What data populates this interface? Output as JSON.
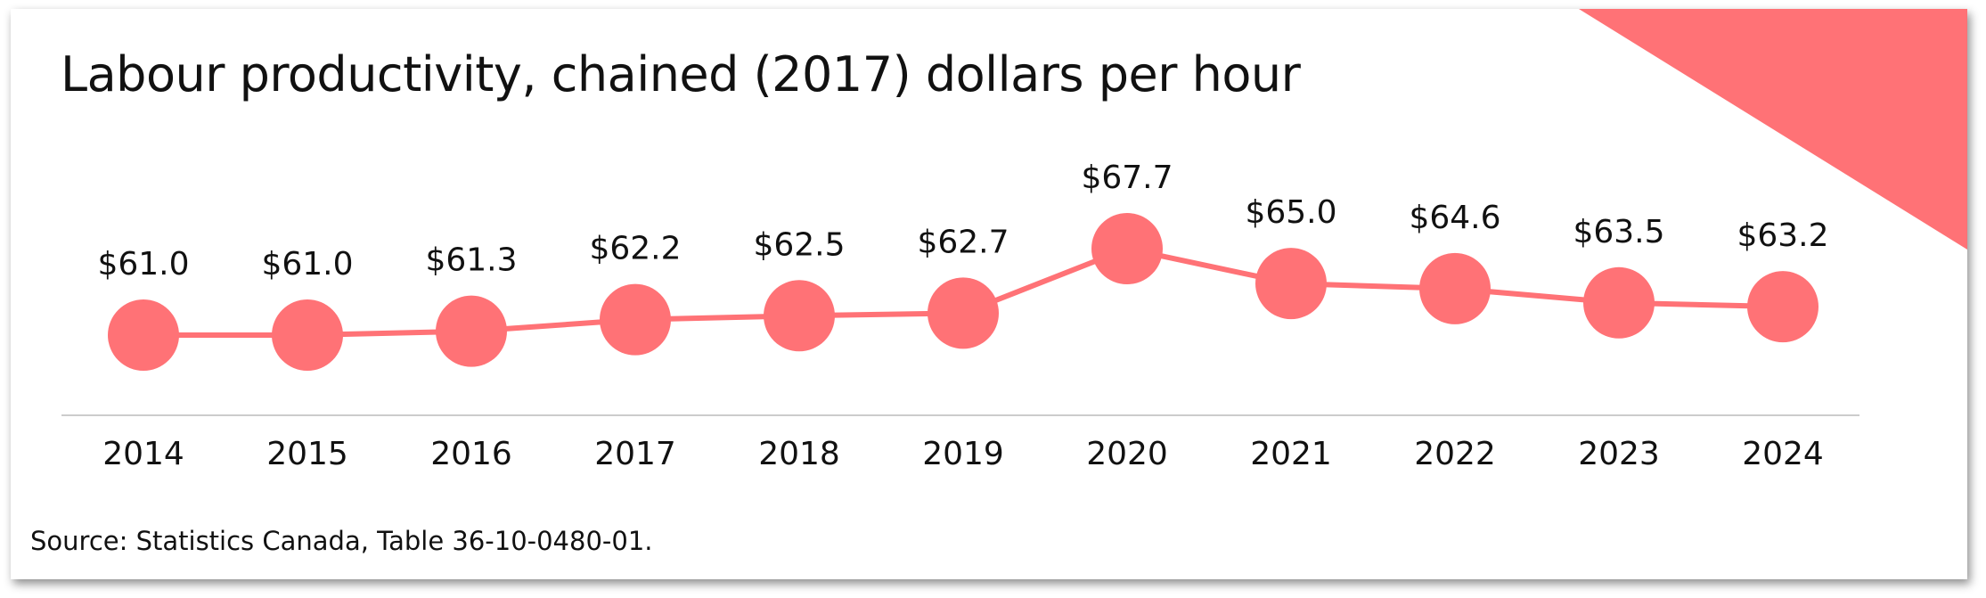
{
  "title": "Labour productivity, chained (2017) dollars per hour",
  "source": "Source: Statistics Canada, Table 36-10-0480-01.",
  "colors": {
    "series": "#FF7276",
    "corner": "#FF7276",
    "axis": "#cccccc"
  },
  "chart_data": {
    "type": "line",
    "title": "Labour productivity, chained (2017) dollars per hour",
    "xlabel": "",
    "ylabel": "",
    "categories": [
      "2014",
      "2015",
      "2016",
      "2017",
      "2018",
      "2019",
      "2020",
      "2021",
      "2022",
      "2023",
      "2024"
    ],
    "values": [
      61.0,
      61.0,
      61.3,
      62.2,
      62.5,
      62.7,
      67.7,
      65.0,
      64.6,
      63.5,
      63.2
    ],
    "data_labels": [
      "$61.0",
      "$61.0",
      "$61.3",
      "$62.2",
      "$62.5",
      "$62.7",
      "$67.7",
      "$65.0",
      "$64.6",
      "$63.5",
      "$63.2"
    ],
    "grid": false,
    "legend": "none",
    "markers": "large-circle"
  }
}
